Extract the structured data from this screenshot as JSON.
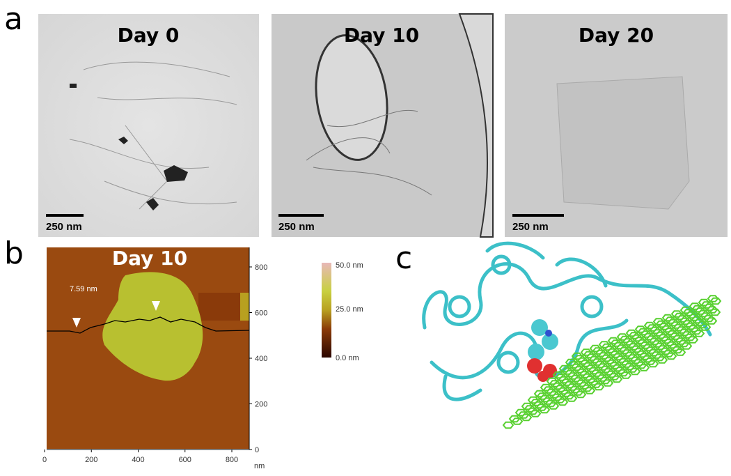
{
  "panels": [
    {
      "label": "a",
      "images": [
        {
          "title": "Day 0",
          "scale_bar": "250 nm"
        },
        {
          "title": "Day 10",
          "scale_bar": "250 nm"
        },
        {
          "title": "Day 20",
          "scale_bar": "250 nm"
        }
      ]
    },
    {
      "label": "b",
      "title": "Day 10",
      "annotation": "7.59 nm",
      "x_axis": {
        "ticks": [
          0,
          200,
          400,
          600,
          800
        ],
        "unit": "nm"
      },
      "y_axis": {
        "ticks": [
          0,
          200,
          400,
          600,
          800
        ]
      },
      "colorbar": {
        "labels": [
          "50.0 nm",
          "25.0 nm",
          "0.0 nm"
        ]
      }
    },
    {
      "label": "c"
    }
  ]
}
